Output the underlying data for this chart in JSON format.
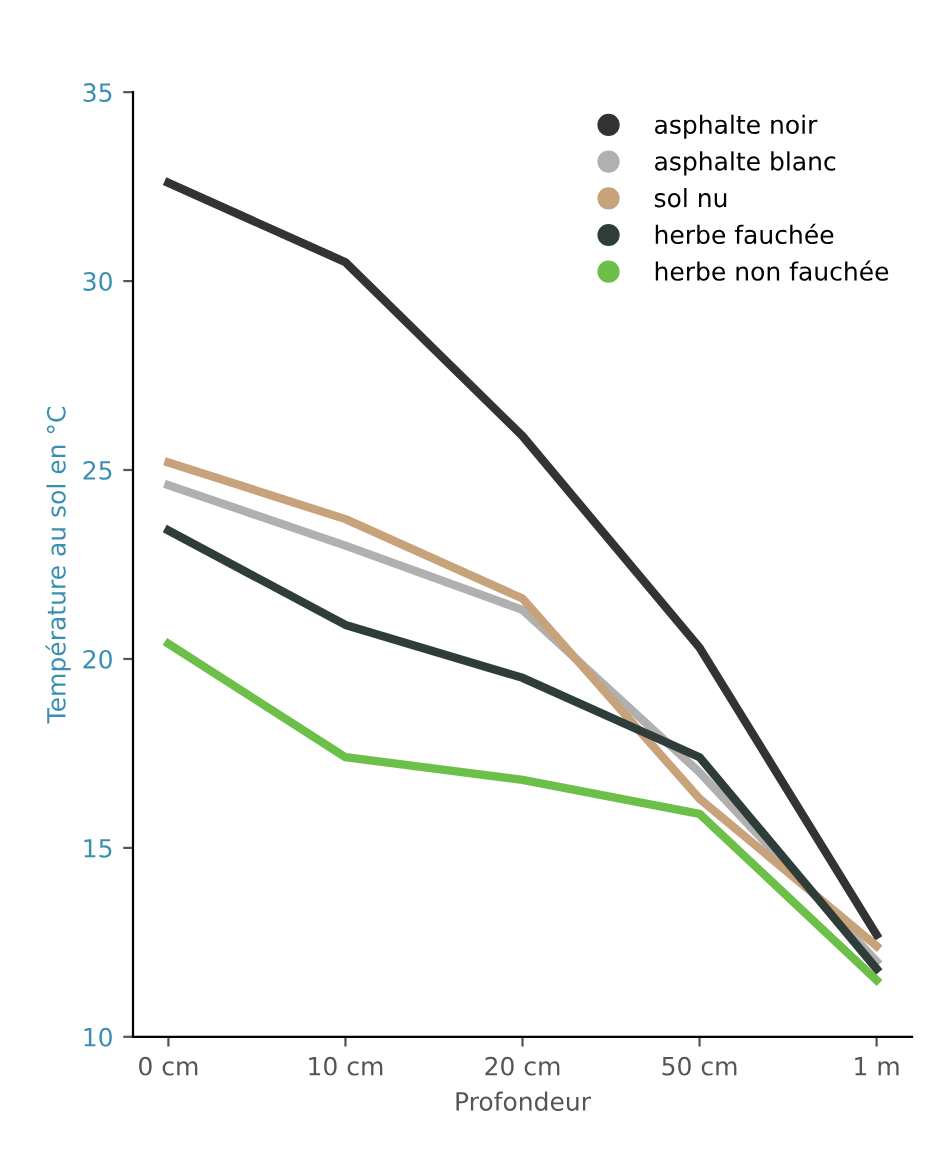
{
  "chart_data": {
    "type": "line",
    "ylabel": "Température au sol en °C",
    "xlabel": "Profondeur",
    "categories": [
      "0 cm",
      "10 cm",
      "20 cm",
      "50 cm",
      "1 m"
    ],
    "series": [
      {
        "name": "asphalte noir",
        "color": "#333333",
        "values": [
          32.6,
          30.5,
          25.9,
          20.3,
          12.7
        ]
      },
      {
        "name": "asphalte blanc",
        "color": "#b0b0b0",
        "values": [
          24.6,
          23.0,
          21.3,
          17.0,
          12.0
        ]
      },
      {
        "name": "sol nu",
        "color": "#c8a27a",
        "values": [
          25.2,
          23.7,
          21.6,
          16.3,
          12.4
        ]
      },
      {
        "name": "herbe fauchée",
        "color": "#2f3d3a",
        "values": [
          23.4,
          20.9,
          19.5,
          17.4,
          11.8
        ]
      },
      {
        "name": "herbe non fauchée",
        "color": "#6cc04a",
        "values": [
          20.4,
          17.4,
          16.8,
          15.9,
          11.5
        ]
      }
    ],
    "ylim": [
      10,
      35
    ],
    "yticks": [
      10,
      15,
      20,
      25,
      30,
      35
    ],
    "grid": false,
    "legend": "top right",
    "line_style": "solid",
    "marker": "none"
  }
}
